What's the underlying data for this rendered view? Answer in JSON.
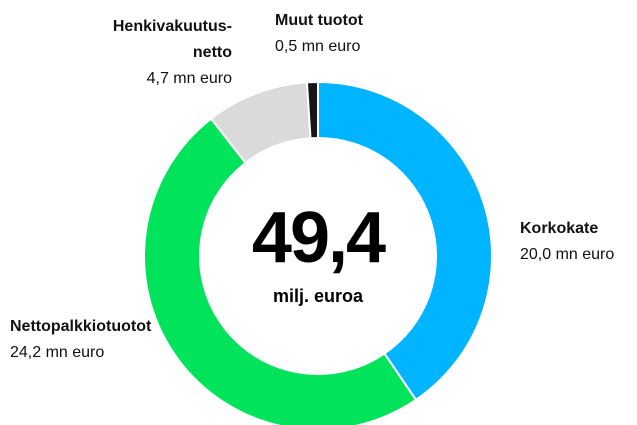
{
  "chart_data": {
    "type": "donut",
    "categories": [
      "Korkokate",
      "Nettopalkkiotuotot",
      "Henkivakuutus-netto",
      "Muut tuotot"
    ],
    "values": [
      20.0,
      24.2,
      4.7,
      0.5
    ],
    "value_labels": [
      "20,0 mn euro",
      "24,2 mn euro",
      "4,7 mn euro",
      "0,5 mn euro"
    ],
    "colors": [
      "#00b4ff",
      "#00e35a",
      "#dadada",
      "#161616"
    ],
    "center_label": "49,4",
    "center_sublabel": "milj. euroa"
  }
}
